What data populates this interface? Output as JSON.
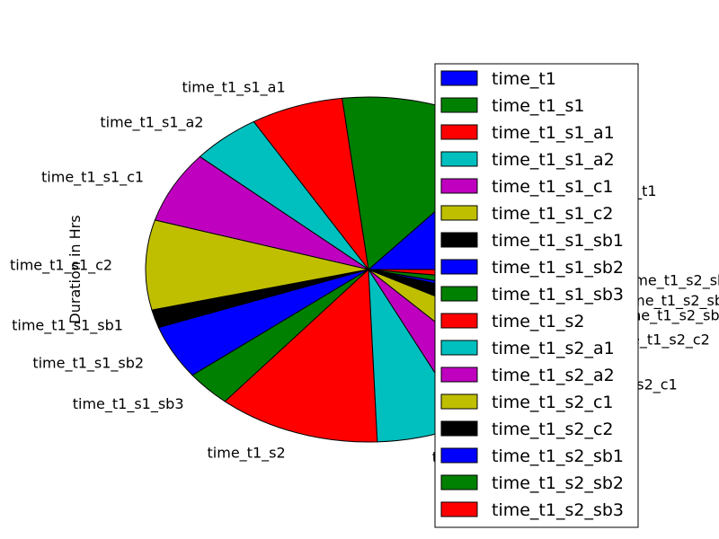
{
  "chart_data": {
    "type": "pie",
    "ylabel": "Duration in Hrs",
    "legend_position": "right",
    "start_angle_deg": 0,
    "direction": "counterclockwise",
    "slices": [
      {
        "label": "time_t1",
        "value": 8.0,
        "color": "#0000ff"
      },
      {
        "label": "time_t1_s1",
        "value": 8.0,
        "color": "#008000"
      },
      {
        "label": "time_t1_s1_a1",
        "value": 4.0,
        "color": "#ff0000"
      },
      {
        "label": "time_t1_s1_a2",
        "value": 3.0,
        "color": "#00bfbf"
      },
      {
        "label": "time_t1_s1_c1",
        "value": 4.0,
        "color": "#bf00bf"
      },
      {
        "label": "time_t1_s1_c2",
        "value": 5.0,
        "color": "#bfbf00"
      },
      {
        "label": "time_t1_s1_sb1",
        "value": 1.0,
        "color": "#000000"
      },
      {
        "label": "time_t1_s1_sb2",
        "value": 3.0,
        "color": "#0000ff"
      },
      {
        "label": "time_t1_s1_sb3",
        "value": 2.0,
        "color": "#008000"
      },
      {
        "label": "time_t1_s2",
        "value": 7.0,
        "color": "#ff0000"
      },
      {
        "label": "time_t1_s2_a1",
        "value": 4.0,
        "color": "#00bfbf"
      },
      {
        "label": "time_t1_s2_a2",
        "value": 3.0,
        "color": "#bf00bf"
      },
      {
        "label": "time_t1_s2_c1",
        "value": 3.0,
        "color": "#bfbf00"
      },
      {
        "label": "time_t1_s2_c2",
        "value": 2.0,
        "color": "#000000"
      },
      {
        "label": "time_t1_s2_sb1",
        "value": 0.5,
        "color": "#0000ff"
      },
      {
        "label": "time_t1_s2_sb2",
        "value": 1.0,
        "color": "#008000"
      },
      {
        "label": "time_t1_s2_sb3",
        "value": 1.0,
        "color": "#ff0000"
      }
    ]
  }
}
